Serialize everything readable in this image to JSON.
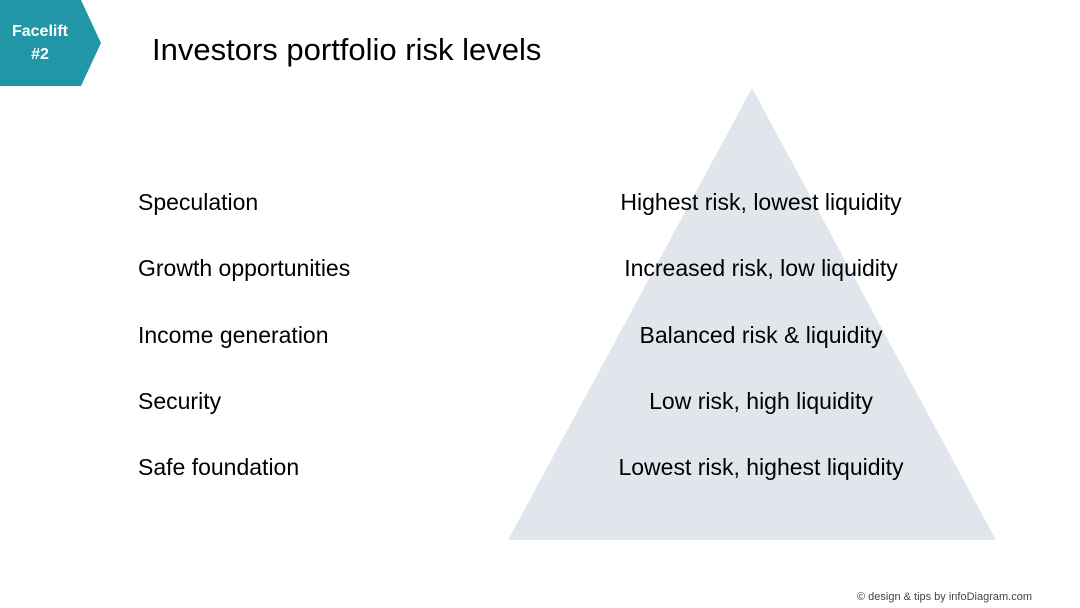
{
  "badge": {
    "line1": "Facelift",
    "line2": "#2",
    "color": "#2196a6"
  },
  "title": "Investors portfolio risk levels",
  "pyramid_color": "#e0e6ec",
  "rows": [
    {
      "label": "Speculation",
      "description": "Highest risk, lowest liquidity"
    },
    {
      "label": "Growth opportunities",
      "description": "Increased risk, low liquidity"
    },
    {
      "label": "Income generation",
      "description": "Balanced risk & liquidity"
    },
    {
      "label": "Security",
      "description": "Low risk, high liquidity"
    },
    {
      "label": "Safe foundation",
      "description": "Lowest risk, highest liquidity"
    }
  ],
  "footer": "© design & tips by infoDiagram.com"
}
